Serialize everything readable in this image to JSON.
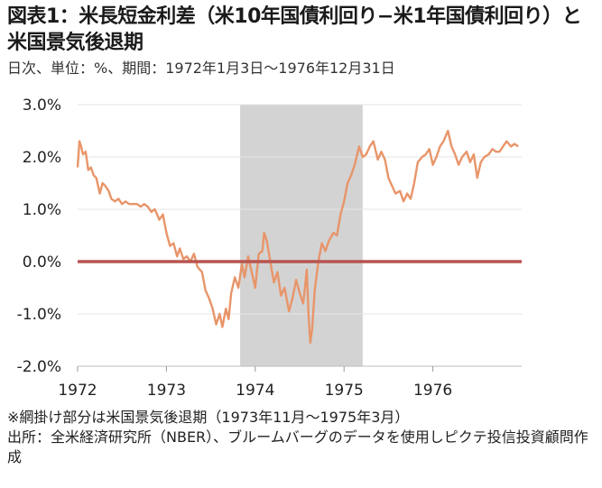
{
  "title": "図表1：米長短金利差（米10年国債利回り−米1年国債利回り）と米国景気後退期",
  "subtitle": "日次、単位：%、期間：1972年1月3日〜1976年12月31日",
  "notes": [
    "※網掛け部分は米国景気後退期（1973年11月〜1975年3月）",
    "出所：全米経済研究所（NBER）、ブルームバーグのデータを使用しピクテ投信投資顧問作成"
  ],
  "colors": {
    "line": "#E8956A",
    "zero_line": "#B85450",
    "recession": "#D3D3D3",
    "grid": "#E6E6E6"
  },
  "chart_data": {
    "type": "line",
    "title": "図表1：米長短金利差（米10年国債利回り−米1年国債利回り）と米国景気後退期",
    "xlabel": "",
    "ylabel": "",
    "xlim": [
      1972.0,
      1977.0
    ],
    "ylim": [
      -2.0,
      3.0
    ],
    "y_ticks": [
      "3.0%",
      "2.0%",
      "1.0%",
      "0.0%",
      "-1.0%",
      "-2.0%"
    ],
    "y_tick_values": [
      3.0,
      2.0,
      1.0,
      0.0,
      -1.0,
      -2.0
    ],
    "x_ticks": [
      "1972",
      "1973",
      "1974",
      "1975",
      "1976"
    ],
    "x_tick_values": [
      1972,
      1973,
      1974,
      1975,
      1976
    ],
    "grid": true,
    "shaded_period": {
      "start": 1973.83,
      "end": 1975.21
    },
    "reference_line": 0.0,
    "series": [
      {
        "x": [
          1972.0,
          1972.02,
          1972.04,
          1972.06,
          1972.09,
          1972.12,
          1972.15,
          1972.18,
          1972.21,
          1972.25,
          1972.28,
          1972.31,
          1972.35,
          1972.38,
          1972.42,
          1972.46,
          1972.5,
          1972.54,
          1972.58,
          1972.63,
          1972.67,
          1972.71,
          1972.75,
          1972.79,
          1972.83,
          1972.87,
          1972.92,
          1972.96,
          1973.0,
          1973.04,
          1973.08,
          1973.12,
          1973.15,
          1973.19,
          1973.23,
          1973.27,
          1973.31,
          1973.35,
          1973.4,
          1973.44,
          1973.48,
          1973.52,
          1973.56,
          1973.6,
          1973.63,
          1973.67,
          1973.7,
          1973.73,
          1973.77,
          1973.81,
          1973.85,
          1973.88,
          1973.92,
          1973.96,
          1974.0,
          1974.04,
          1974.08,
          1974.1,
          1974.13,
          1974.17,
          1974.21,
          1974.25,
          1974.29,
          1974.33,
          1974.38,
          1974.42,
          1974.46,
          1974.5,
          1974.54,
          1974.56,
          1974.58,
          1974.6,
          1974.62,
          1974.64,
          1974.67,
          1974.71,
          1974.75,
          1974.79,
          1974.83,
          1974.88,
          1974.92,
          1974.96,
          1975.0,
          1975.04,
          1975.08,
          1975.12,
          1975.17,
          1975.21,
          1975.25,
          1975.29,
          1975.33,
          1975.38,
          1975.42,
          1975.46,
          1975.5,
          1975.54,
          1975.58,
          1975.63,
          1975.67,
          1975.71,
          1975.75,
          1975.79,
          1975.83,
          1975.88,
          1975.92,
          1975.96,
          1976.0,
          1976.04,
          1976.08,
          1976.12,
          1976.17,
          1976.21,
          1976.25,
          1976.29,
          1976.33,
          1976.38,
          1976.42,
          1976.46,
          1976.5,
          1976.54,
          1976.58,
          1976.63,
          1976.67,
          1976.71,
          1976.75,
          1976.79,
          1976.83,
          1976.88,
          1976.92,
          1976.96
        ],
        "values": [
          1.8,
          2.3,
          2.2,
          2.05,
          2.1,
          1.75,
          1.8,
          1.65,
          1.6,
          1.3,
          1.5,
          1.45,
          1.35,
          1.2,
          1.15,
          1.2,
          1.1,
          1.15,
          1.1,
          1.1,
          1.1,
          1.05,
          1.1,
          1.05,
          0.95,
          1.0,
          0.8,
          0.9,
          0.55,
          0.3,
          0.35,
          0.1,
          0.25,
          0.05,
          0.1,
          0.0,
          0.15,
          -0.1,
          -0.2,
          -0.55,
          -0.7,
          -0.9,
          -1.2,
          -1.0,
          -1.25,
          -0.9,
          -1.1,
          -0.6,
          -0.3,
          -0.5,
          -0.05,
          -0.3,
          0.1,
          -0.2,
          -0.5,
          0.15,
          0.2,
          0.55,
          0.4,
          0.0,
          -0.4,
          -0.2,
          -0.65,
          -0.5,
          -0.95,
          -0.7,
          -0.35,
          -0.6,
          -0.8,
          -0.5,
          -0.15,
          -1.0,
          -1.55,
          -1.3,
          -0.55,
          0.0,
          0.35,
          0.2,
          0.4,
          0.55,
          0.5,
          0.9,
          1.15,
          1.5,
          1.65,
          1.85,
          2.2,
          2.0,
          2.05,
          2.2,
          2.3,
          1.95,
          2.1,
          1.95,
          1.6,
          1.45,
          1.3,
          1.35,
          1.15,
          1.3,
          1.2,
          1.5,
          1.9,
          2.0,
          2.05,
          2.15,
          1.85,
          2.0,
          2.2,
          2.3,
          2.5,
          2.2,
          2.05,
          1.85,
          2.0,
          2.1,
          1.9,
          2.05,
          1.6,
          1.9,
          2.0,
          2.05,
          2.15,
          2.1,
          2.1,
          2.2,
          2.3,
          2.2,
          2.25,
          2.2
        ]
      }
    ]
  }
}
